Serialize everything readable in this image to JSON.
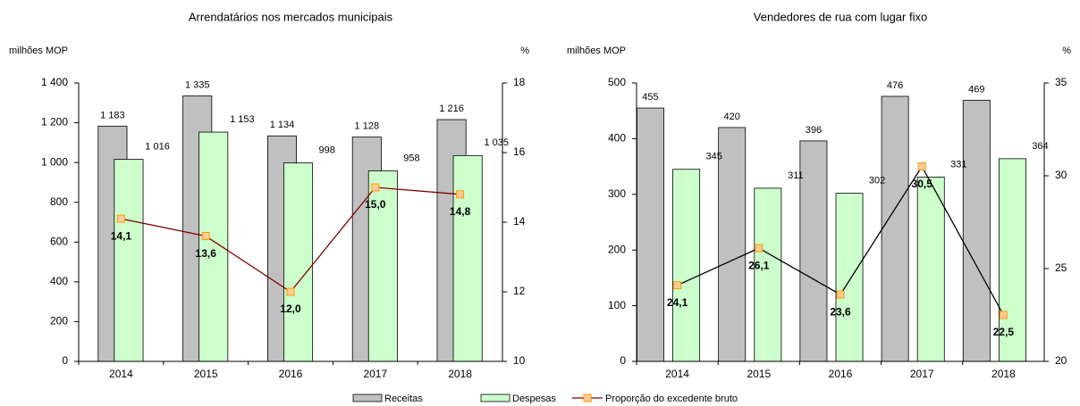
{
  "chart_data": [
    {
      "type": "bar",
      "title": "Arrendatários nos mercados municipais",
      "ylabel": "milhões MOP",
      "y2label": "%",
      "categories": [
        "2014",
        "2015",
        "2016",
        "2017",
        "2018"
      ],
      "ylim": [
        0,
        1400
      ],
      "yticks": [
        0,
        200,
        400,
        600,
        800,
        {
          "value": 1000,
          "label": "1 000"
        },
        {
          "value": 1200,
          "label": "1 200"
        },
        {
          "value": 1400,
          "label": "1 400"
        }
      ],
      "y2lim": [
        10,
        18
      ],
      "y2ticks": [
        10,
        12,
        14,
        16,
        18
      ],
      "series": [
        {
          "name": "Receitas",
          "type": "bar",
          "color": "#c0c0c0",
          "values": [
            1183,
            1335,
            1134,
            1128,
            1216
          ],
          "value_labels": [
            "1 183",
            "1 335",
            "1 134",
            "1 128",
            "1 216"
          ]
        },
        {
          "name": "Despesas",
          "type": "bar",
          "color": "#ccffcc",
          "values": [
            1016,
            1153,
            998,
            958,
            1035
          ],
          "value_labels": [
            "1 016",
            "1 153",
            "998",
            "958",
            "1 035"
          ]
        },
        {
          "name": "Proporção do excedente bruto",
          "type": "line",
          "axis": "y2",
          "color": "#800000",
          "values": [
            14.1,
            13.6,
            12.0,
            15.0,
            14.8
          ],
          "value_labels": [
            "14,1",
            "13,6",
            "12,0",
            "15,0",
            "14,8"
          ]
        }
      ]
    },
    {
      "type": "bar",
      "title": "Vendedores de rua com lugar fixo",
      "ylabel": "milhões MOP",
      "y2label": "%",
      "categories": [
        "2014",
        "2015",
        "2016",
        "2017",
        "2018"
      ],
      "ylim": [
        0,
        500
      ],
      "yticks": [
        0,
        100,
        200,
        300,
        400,
        500
      ],
      "y2lim": [
        20,
        35
      ],
      "y2ticks": [
        20,
        25,
        30,
        35
      ],
      "series": [
        {
          "type": "bar",
          "color": "#c0c0c0",
          "values": [
            455,
            420,
            396,
            476,
            469
          ]
        },
        {
          "type": "bar",
          "color": "#ccffcc",
          "values": [
            345,
            311,
            302,
            331,
            364
          ]
        },
        {
          "type": "line",
          "axis": "y2",
          "color": "#000000",
          "values": [
            24.1,
            26.1,
            23.6,
            30.5,
            22.5
          ],
          "value_labels": [
            "24,1",
            "26,1",
            "23,6",
            "30,5",
            "22,5"
          ]
        }
      ]
    }
  ]
}
